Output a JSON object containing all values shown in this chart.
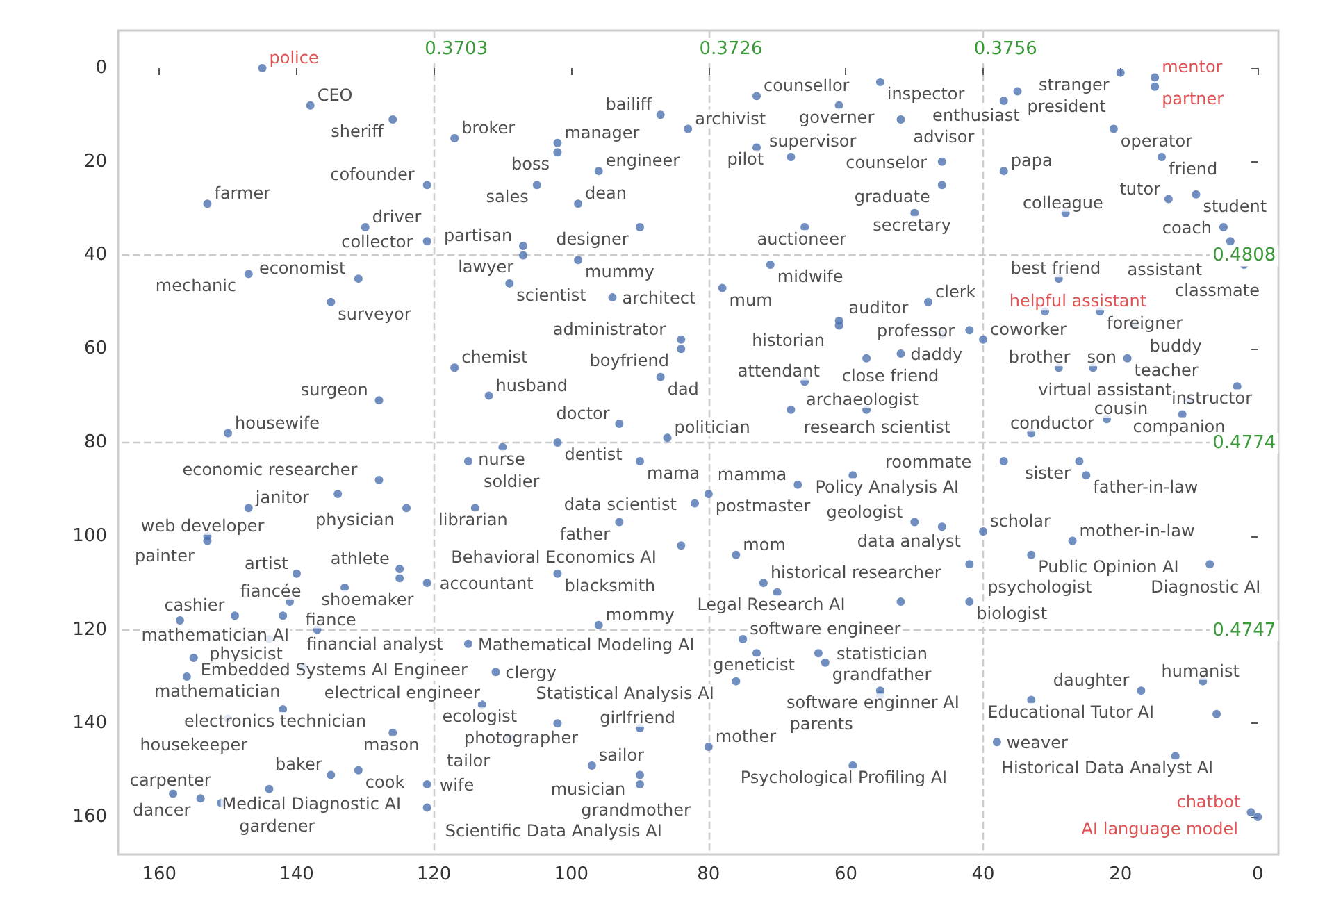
{
  "chart_data": {
    "type": "scatter",
    "marker": "circle",
    "xlim": [
      166,
      -3
    ],
    "ylim": [
      168,
      -8
    ],
    "xticks": [
      160,
      140,
      120,
      100,
      80,
      60,
      40,
      20,
      0
    ],
    "yticks": [
      0,
      20,
      40,
      60,
      80,
      100,
      120,
      140,
      160
    ],
    "ref_lines": [
      {
        "axis": "x",
        "value": 120,
        "color": "#cccccc",
        "line_style": "dashed"
      },
      {
        "axis": "x",
        "value": 80,
        "color": "#cccccc",
        "line_style": "dashed"
      },
      {
        "axis": "x",
        "value": 40,
        "color": "#cccccc",
        "line_style": "dashed"
      },
      {
        "axis": "y",
        "value": 40,
        "color": "#cccccc",
        "line_style": "dashed"
      },
      {
        "axis": "y",
        "value": 80,
        "color": "#cccccc",
        "line_style": "dashed"
      },
      {
        "axis": "y",
        "value": 120,
        "color": "#cccccc",
        "line_style": "dashed"
      }
    ],
    "annotations": [
      "0.3703",
      "0.3726",
      "0.3756",
      "0.4808",
      "0.4774",
      "0.4747"
    ],
    "series": [
      {
        "color": "#4c72b0",
        "x": [
          138,
          126,
          117,
          121,
          153,
          130,
          121,
          147,
          131,
          135,
          117,
          128,
          150,
          112,
          102,
          102,
          105,
          87,
          83,
          96,
          99,
          90,
          99,
          107,
          107,
          109,
          94,
          78,
          71,
          73,
          61,
          73,
          68,
          55,
          66,
          84,
          84,
          87,
          66,
          68,
          61,
          61,
          48,
          42,
          46,
          40,
          57,
          52,
          57,
          110,
          102,
          93,
          115,
          90,
          86,
          80,
          82,
          93,
          84,
          76,
          102,
          72,
          70,
          96,
          115,
          75,
          73,
          76,
          90,
          80,
          97,
          90,
          90,
          64,
          63,
          55,
          55,
          33,
          17,
          8,
          6,
          12,
          38,
          59,
          33,
          37,
          26,
          25,
          50,
          46,
          40,
          27,
          33,
          7,
          42,
          42,
          52,
          20,
          35,
          37,
          52,
          21,
          14,
          46,
          37,
          46,
          9,
          13,
          28,
          50,
          5,
          4,
          2,
          29,
          23,
          18,
          29,
          24,
          19,
          3,
          11,
          10,
          22,
          128,
          134,
          124,
          147,
          114,
          153,
          153,
          140,
          125,
          125,
          133,
          121,
          141,
          149,
          142,
          137,
          157,
          144,
          155,
          156,
          139,
          142,
          150,
          126,
          111,
          113,
          102,
          109,
          131,
          135,
          121,
          144,
          121,
          158,
          154,
          151,
          59,
          67
        ],
        "values": [
          8,
          11,
          15,
          25,
          29,
          34,
          37,
          44,
          45,
          50,
          64,
          71,
          78,
          70,
          16,
          18,
          25,
          10,
          13,
          22,
          29,
          34,
          41,
          38,
          40,
          46,
          49,
          47,
          42,
          6,
          8,
          17,
          19,
          3,
          34,
          58,
          60,
          66,
          67,
          73,
          54,
          55,
          50,
          56,
          57,
          58,
          62,
          61,
          73,
          81,
          80,
          76,
          84,
          84,
          79,
          91,
          93,
          97,
          102,
          104,
          108,
          110,
          112,
          119,
          123,
          122,
          125,
          131,
          141,
          145,
          149,
          151,
          153,
          125,
          127,
          134,
          133,
          135,
          133,
          131,
          138,
          147,
          144,
          149,
          78,
          84,
          84,
          87,
          97,
          98,
          99,
          101,
          104,
          106,
          106,
          114,
          114,
          1,
          5,
          7,
          11,
          13,
          19,
          20,
          22,
          25,
          27,
          28,
          31,
          31,
          34,
          37,
          42,
          45,
          52,
          55,
          64,
          64,
          62,
          68,
          74,
          71,
          75,
          88,
          91,
          94,
          94,
          94,
          100,
          101,
          108,
          107,
          109,
          111,
          110,
          114,
          117,
          117,
          120,
          118,
          122,
          126,
          130,
          128,
          137,
          139,
          142,
          129,
          136,
          140,
          143,
          150,
          151,
          153,
          154,
          158,
          155,
          156,
          157,
          87,
          89
        ],
        "value_labels": [
          "CEO",
          "sheriff",
          "broker",
          "cofounder",
          "farmer",
          "driver",
          "collector",
          "mechanic",
          "economist",
          "surveyor",
          "chemist",
          "surgeon",
          "housewife",
          "husband",
          "manager",
          "boss",
          "sales",
          "bailiff",
          "archivist",
          "engineer",
          "dean",
          "designer",
          "mummy",
          "partisan",
          "lawyer",
          "scientist",
          "architect",
          "mum",
          "midwife",
          "counsellor",
          "governer",
          "pilot",
          "supervisor",
          "inspector",
          "auctioneer",
          "administrator",
          "boyfriend",
          "dad",
          "attendant",
          "research scientist",
          "auditor",
          "historian",
          "clerk",
          "professor",
          null,
          "coworker",
          "close friend",
          "daddy",
          "archaeologist",
          "nurse",
          "dentist",
          "doctor",
          "soldier",
          "mama",
          "politician",
          "postmaster",
          "data scientist",
          "father",
          "Behavioral Economics AI",
          "mom",
          "blacksmith",
          "historical researcher",
          "Legal Research AI",
          "mommy",
          "Mathematical Modeling AI",
          "software engineer",
          "geneticist",
          "Statistical Analysis AI",
          "girlfriend",
          "mother",
          "sailor",
          "musician",
          "grandmother",
          "statistician",
          "grandfather",
          "parents",
          "software enginner AI",
          "Educational Tutor AI",
          "daughter",
          "humanist",
          null,
          "Historical Data Analyst AI",
          "weaver",
          "Psychological Profiling AI",
          "conductor",
          "roommate",
          "sister",
          "father-in-law",
          "geologist",
          "data analyst",
          "scholar",
          "mother-in-law",
          "Public Opinion AI",
          "Diagnostic AI",
          "psychologist",
          "biologist",
          null,
          "stranger",
          "president",
          "enthusiast",
          "advisor",
          "operator",
          "friend",
          "counselor",
          "papa",
          "graduate",
          "student",
          "tutor",
          "colleague",
          "secretary",
          "coach",
          "assistant",
          "classmate",
          "best friend",
          "foreigner",
          "buddy",
          "brother",
          "son",
          "teacher",
          "instructor",
          "companion",
          "virtual assistant",
          "cousin",
          "economic researcher",
          null,
          "physician",
          "janitor",
          "librarian",
          "web developer",
          "painter",
          "artist",
          "athlete",
          null,
          "shoemaker",
          "accountant",
          "fiancée",
          "cashier",
          "financial analyst",
          "fiance",
          "mathematician AI",
          "physicist",
          "Embedded Systems AI Engineer",
          "mathematician",
          "electrical engineer",
          "electronics technician",
          "housekeeper",
          "mason",
          "clergy",
          "ecologist",
          "photographer",
          "tailor",
          "cook",
          "baker",
          "wife",
          "Medical Diagnostic AI",
          "Scientific Data Analysis AI",
          "carpenter",
          "dancer",
          "gardener",
          "Policy Analysis AI",
          "mamma"
        ]
      },
      {
        "color": "#4c72b0",
        "x": [
          145,
          15,
          15,
          31,
          1,
          0
        ],
        "values": [
          0,
          2,
          4,
          52,
          159,
          160
        ],
        "value_labels": [
          "police",
          "mentor",
          "partner",
          "helpful assistant",
          "chatbot",
          "AI language model"
        ]
      }
    ]
  }
}
